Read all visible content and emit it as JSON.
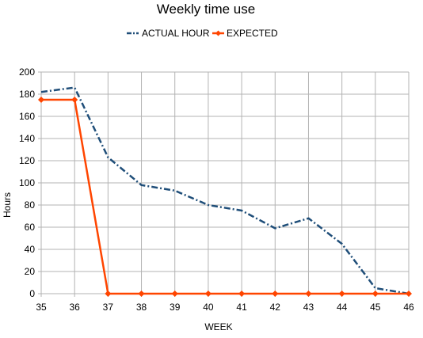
{
  "chart_data": {
    "type": "line",
    "title": "Weekly time use",
    "xlabel": "WEEK",
    "ylabel": "Hours",
    "x": [
      35,
      36,
      37,
      38,
      39,
      40,
      41,
      42,
      43,
      44,
      45,
      46
    ],
    "xlim": [
      35,
      46
    ],
    "ylim": [
      0,
      200
    ],
    "yticks": [
      0,
      20,
      40,
      60,
      80,
      100,
      120,
      140,
      160,
      180,
      200
    ],
    "grid": true,
    "legend_position": "top",
    "series": [
      {
        "name": "ACTUAL HOUR",
        "color": "#1f4e79",
        "style": "dash-dot",
        "marker": "none",
        "values": [
          182,
          186,
          123,
          98,
          93,
          80,
          75,
          59,
          68,
          45,
          5,
          0
        ]
      },
      {
        "name": "EXPECTED",
        "color": "#ff4500",
        "style": "solid",
        "marker": "diamond",
        "values": [
          175,
          175,
          0,
          0,
          0,
          0,
          0,
          0,
          0,
          0,
          0,
          0
        ]
      }
    ]
  }
}
